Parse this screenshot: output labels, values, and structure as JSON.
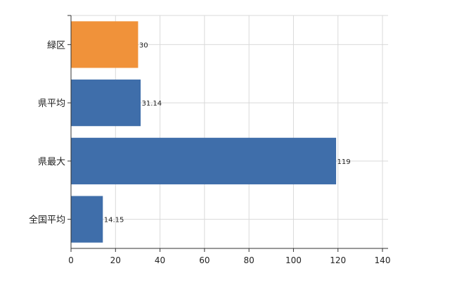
{
  "chart_data": {
    "type": "bar",
    "orientation": "horizontal",
    "categories": [
      "緑区",
      "県平均",
      "県最大",
      "全国平均"
    ],
    "values": [
      30,
      31.14,
      119,
      14.15
    ],
    "data_labels": [
      "30",
      "31.14",
      "119",
      "14.15"
    ],
    "colors": [
      "#f0923a",
      "#3f6eaa",
      "#3f6eaa",
      "#3f6eaa"
    ],
    "xlim": [
      0,
      140
    ],
    "x_ticks": [
      0,
      20,
      40,
      60,
      80,
      100,
      120,
      140
    ],
    "x_tick_labels": [
      "0",
      "20",
      "40",
      "60",
      "80",
      "100",
      "120",
      "140"
    ],
    "grid": true,
    "title": "",
    "xlabel": "",
    "ylabel": ""
  }
}
